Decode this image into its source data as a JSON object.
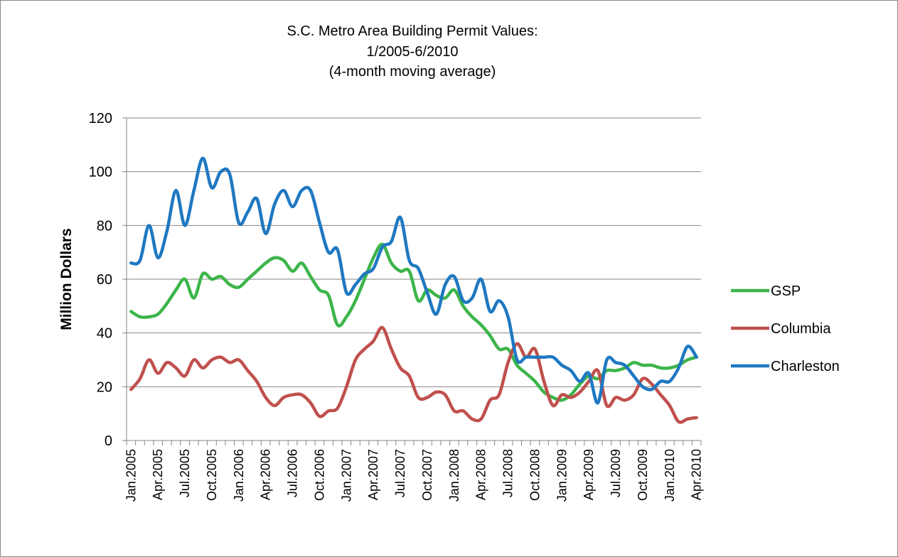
{
  "chart_data": {
    "type": "line",
    "title": [
      "S.C. Metro Area Building Permit Values:",
      "1/2005-6/2010",
      "(4-month moving average)"
    ],
    "y_label": "Million Dollars",
    "categories": [
      "Jan.2005",
      null,
      null,
      "Apr.2005",
      null,
      null,
      "Jul.2005",
      null,
      null,
      "Oct.2005",
      null,
      null,
      "Jan.2006",
      null,
      null,
      "Apr.2006",
      null,
      null,
      "Jul.2006",
      null,
      null,
      "Oct.2006",
      null,
      null,
      "Jan.2007",
      null,
      null,
      "Apr.2007",
      null,
      null,
      "Jul.2007",
      null,
      null,
      "Oct.2007",
      null,
      null,
      "Jan.2008",
      null,
      null,
      "Apr.2008",
      null,
      null,
      "Jul.2008",
      null,
      null,
      "Oct.2008",
      null,
      null,
      "Jan.2009",
      null,
      null,
      "Apr.2009",
      null,
      null,
      "Jul.2009",
      null,
      null,
      "Oct.2009",
      null,
      null,
      "Jan.2010",
      null,
      null,
      "Apr.2010"
    ],
    "series": [
      {
        "name": "GSP",
        "color": "#3cb54a",
        "values": [
          48,
          46,
          46,
          47,
          51,
          56,
          60,
          53,
          62,
          60,
          61,
          58,
          57,
          60,
          63,
          66,
          68,
          67,
          63,
          66,
          61,
          56,
          54,
          43,
          46,
          52,
          60,
          68,
          73,
          66,
          63,
          63,
          52,
          56,
          54,
          53,
          56,
          50,
          46,
          43,
          39,
          34,
          34,
          28,
          25,
          22,
          18,
          16,
          15,
          17,
          21,
          24,
          23,
          26,
          26,
          27,
          29,
          28,
          28,
          27,
          27,
          28,
          30,
          31
        ]
      },
      {
        "name": "Columbia",
        "color": "#c0504d",
        "values": [
          19,
          23,
          30,
          25,
          29,
          27,
          24,
          30,
          27,
          30,
          31,
          29,
          30,
          26,
          22,
          16,
          13,
          16,
          17,
          17,
          14,
          9,
          11,
          12,
          20,
          30,
          34,
          37,
          42,
          34,
          27,
          24,
          16,
          16,
          18,
          17,
          11,
          11,
          8,
          8,
          15,
          17,
          29,
          36,
          31,
          34,
          22,
          13,
          17,
          16,
          18,
          22,
          26,
          13,
          16,
          15,
          17,
          23,
          21,
          17,
          13,
          7,
          8,
          8.5
        ]
      },
      {
        "name": "Charleston",
        "color": "#1f78c1",
        "values": [
          66,
          67,
          80,
          68,
          78,
          93,
          80,
          93,
          105,
          94,
          100,
          99,
          81,
          85,
          90,
          77,
          88,
          93,
          87,
          93,
          93,
          81,
          70,
          71,
          55,
          58,
          62,
          64,
          72,
          74,
          83,
          67,
          64,
          55,
          47,
          58,
          61,
          52,
          53,
          60,
          48,
          52,
          46,
          30,
          31,
          31,
          31,
          31,
          28,
          26,
          22,
          25,
          14,
          30,
          29,
          28,
          24,
          20,
          19,
          22,
          22,
          27,
          35,
          31
        ]
      }
    ],
    "ylim": [
      0,
      120
    ],
    "yticks": [
      0,
      20,
      40,
      60,
      80,
      100,
      120
    ],
    "grid": true,
    "legend": "right"
  }
}
